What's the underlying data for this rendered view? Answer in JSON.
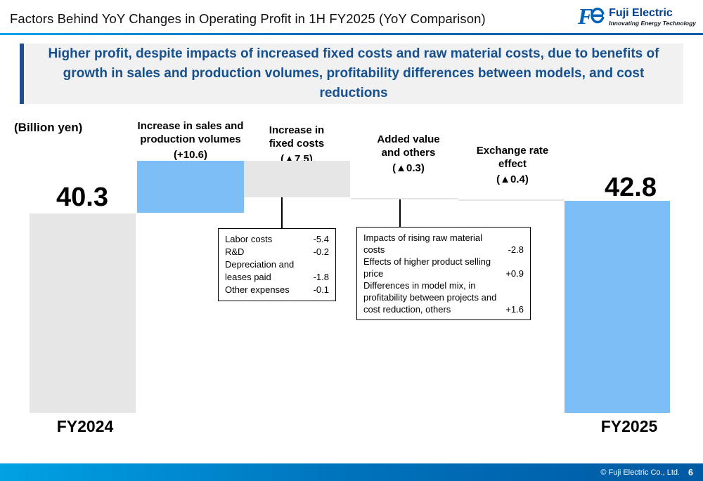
{
  "header": {
    "title": "Factors Behind YoY Changes in Operating Profit in 1H FY2025 (YoY Comparison)",
    "brand": "Fuji Electric",
    "tagline": "Innovating Energy Technology"
  },
  "headline": {
    "text": "Higher profit, despite impacts of increased fixed costs and raw material costs, due to benefits of growth in sales and production volumes, profitability differences between models, and cost reductions"
  },
  "chart_data": {
    "type": "waterfall",
    "unit_label": "(Billion yen)",
    "baseline": 0,
    "categories": [
      "FY2024",
      "Increase in sales and production volumes",
      "Increase in fixed costs",
      "Added value and others",
      "Exchange rate effect",
      "FY2025"
    ],
    "values": [
      40.3,
      10.6,
      -7.5,
      -0.3,
      -0.4,
      42.8
    ],
    "columns": [
      {
        "kind": "total",
        "axis_label": "FY2024",
        "value": 40.3,
        "value_label": "40.3",
        "color": "#E6E6E6"
      },
      {
        "kind": "increase",
        "label_lines": [
          "Increase in sales and",
          "production volumes"
        ],
        "delta_label": "(+10.6)",
        "value": 10.6,
        "color": "#7DBEF7"
      },
      {
        "kind": "decrease",
        "label_lines": [
          "Increase in",
          "fixed costs"
        ],
        "delta_label": "(▲7.5)",
        "value": -7.5,
        "color": "#E6E6E6"
      },
      {
        "kind": "decrease",
        "label_lines": [
          "Added value",
          "and others"
        ],
        "delta_label": "(▲0.3)",
        "value": -0.3,
        "color": "#E6E6E6"
      },
      {
        "kind": "decrease",
        "label_lines": [
          "Exchange rate",
          "effect"
        ],
        "delta_label": "(▲0.4)",
        "value": -0.4,
        "color": "#E6E6E6"
      },
      {
        "kind": "total",
        "axis_label": "FY2025",
        "value": 42.8,
        "value_label": "42.8",
        "color": "#7DBEF7"
      }
    ]
  },
  "callouts": [
    {
      "attached_to": "Increase in fixed costs",
      "rows": [
        {
          "text": "Labor costs",
          "value": "-5.4"
        },
        {
          "text": "R&D",
          "value": "-0.2"
        },
        {
          "text": "Depreciation and leases paid",
          "value": "-1.8"
        },
        {
          "text": "Other expenses",
          "value": "-0.1"
        }
      ]
    },
    {
      "attached_to": "Added value and others",
      "rows": [
        {
          "text": "Impacts of rising raw material costs",
          "value": "-2.8"
        },
        {
          "text": "Effects of higher product selling price",
          "value": "+0.9"
        },
        {
          "text": "Differences in model mix, in profitability between projects and cost reduction, others",
          "value": "+1.6"
        }
      ]
    }
  ],
  "footer": {
    "copyright": "© Fuji Electric Co., Ltd.",
    "page": "6"
  },
  "colors": {
    "accent_blue_bar": "#7DBEF7",
    "gray_bar": "#E6E6E6",
    "headline_blue": "#16508F",
    "footer_gradient_left": "#00A2E4",
    "footer_gradient_right": "#0059A3"
  }
}
